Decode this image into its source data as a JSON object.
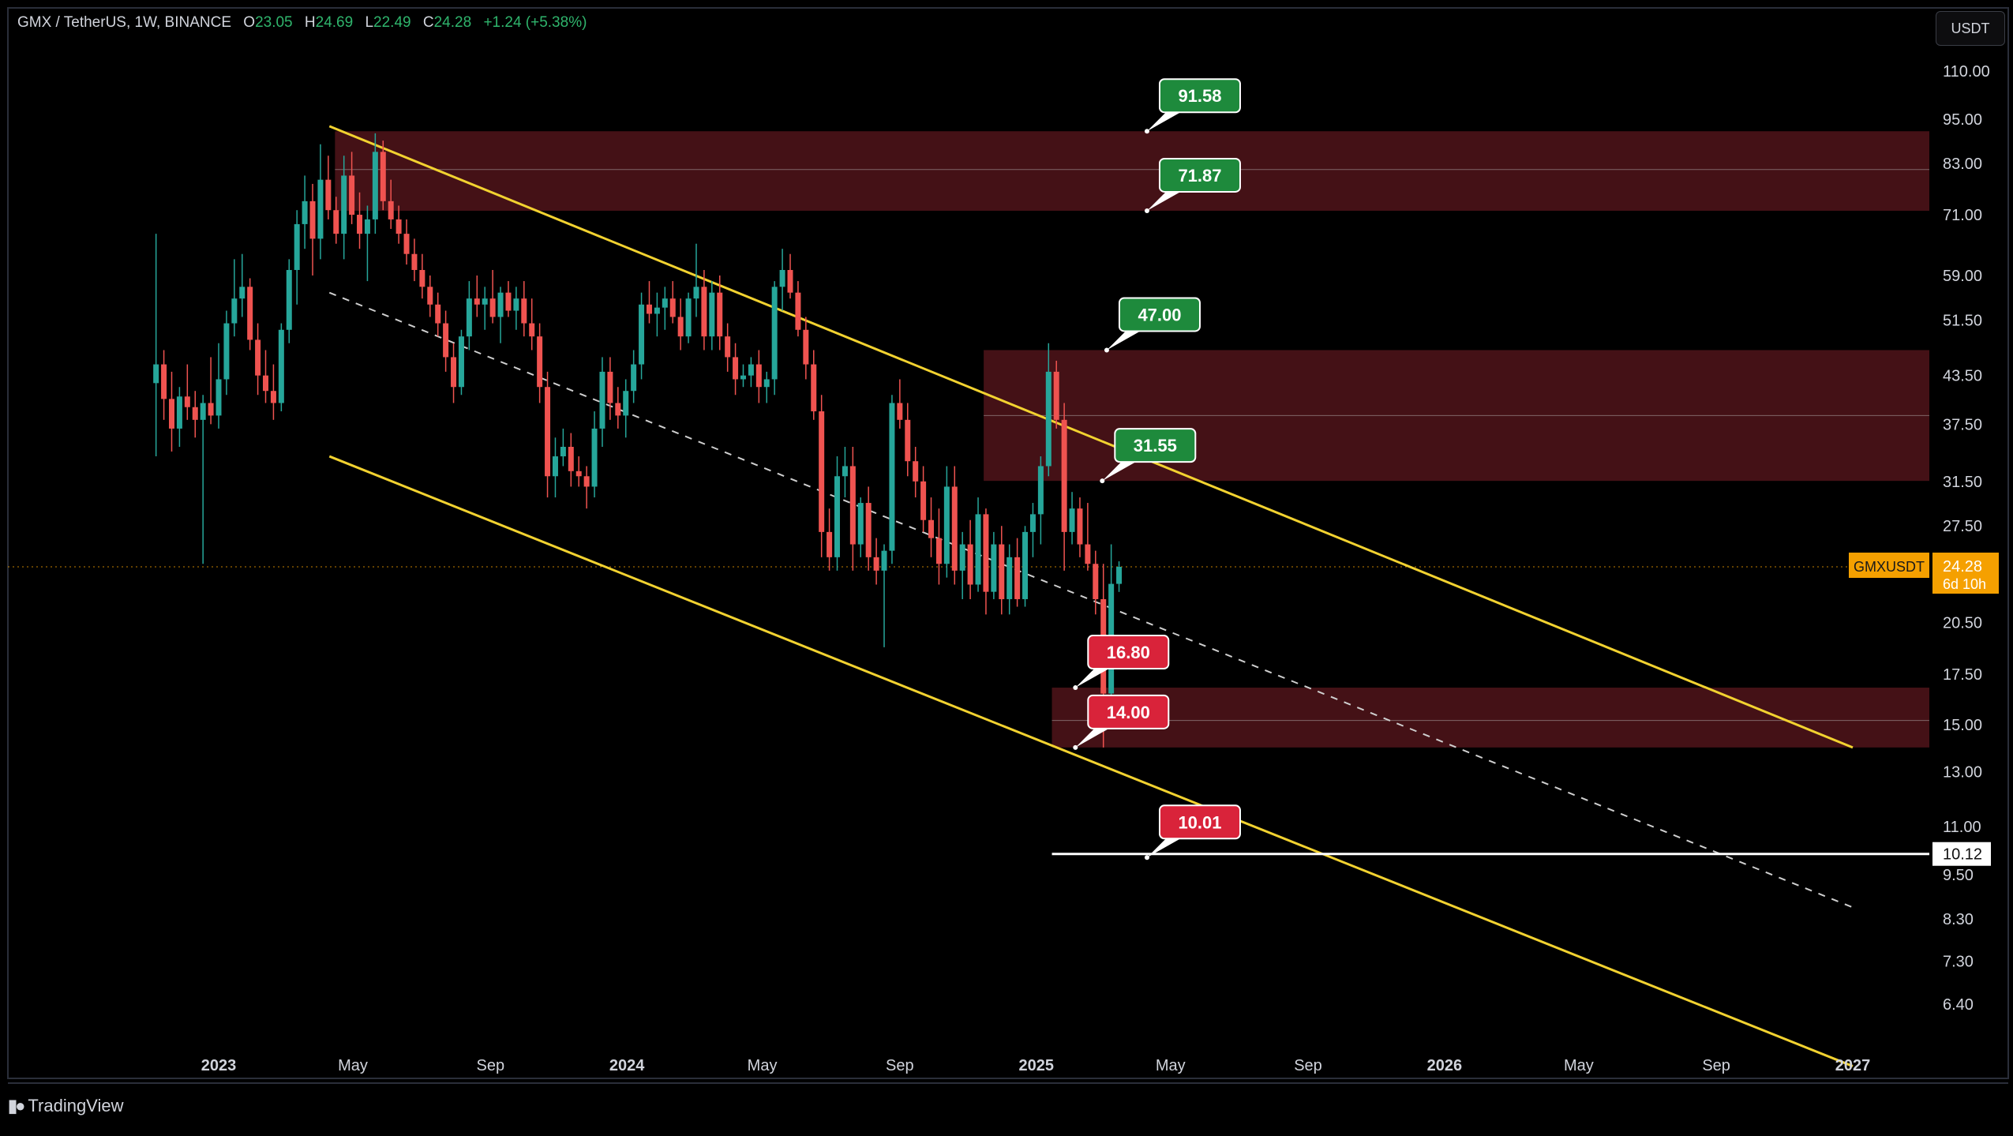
{
  "header": {
    "symbol": "GMX / TetherUS, 1W, BINANCE",
    "open_label": "O",
    "open": "23.05",
    "high_label": "H",
    "high": "24.69",
    "low_label": "L",
    "low": "22.49",
    "close_label": "C",
    "close": "24.28",
    "change": "+1.24 (+5.38%)"
  },
  "currency_button": "USDT",
  "brand": "TradingView",
  "colors": {
    "bull": "#26a69a",
    "bear": "#ef5350",
    "channel": "#f2d230",
    "zone": "#4a1218",
    "label_green": "#1e8a3c",
    "label_red": "#d9233a",
    "price_tag": "#f5a000"
  },
  "chart_data": {
    "type": "candlestick",
    "scale": "log",
    "symbol": "GMXUSDT",
    "interval": "1W",
    "y_ticks": [
      110.0,
      95.0,
      83.0,
      71.0,
      59.0,
      51.5,
      43.5,
      37.5,
      31.5,
      27.5,
      20.5,
      17.5,
      15.0,
      13.0,
      11.0,
      9.5,
      8.3,
      7.3,
      6.4
    ],
    "x_ticks": [
      {
        "date": "2023-01-01",
        "label": "2023"
      },
      {
        "date": "2023-05-01",
        "label": "May"
      },
      {
        "date": "2023-09-01",
        "label": "Sep"
      },
      {
        "date": "2024-01-01",
        "label": "2024"
      },
      {
        "date": "2024-05-01",
        "label": "May"
      },
      {
        "date": "2024-09-01",
        "label": "Sep"
      },
      {
        "date": "2025-01-01",
        "label": "2025"
      },
      {
        "date": "2025-05-01",
        "label": "May"
      },
      {
        "date": "2025-09-01",
        "label": "Sep"
      },
      {
        "date": "2026-01-01",
        "label": "2026"
      },
      {
        "date": "2026-05-01",
        "label": "May"
      },
      {
        "date": "2026-09-01",
        "label": "Sep"
      },
      {
        "date": "2027-01-01",
        "label": "2027"
      }
    ],
    "last_price": {
      "symbol": "GMXUSDT",
      "value": "24.28",
      "countdown": "6d 10h"
    },
    "horizontal_line": {
      "value": "10.12",
      "from": "2025-01-15"
    },
    "zones": [
      {
        "from": "2023-04-15",
        "top": 91.58,
        "mid": 81.5,
        "bottom": 71.87
      },
      {
        "from": "2024-11-15",
        "top": 47.0,
        "mid": 38.5,
        "bottom": 31.55
      },
      {
        "from": "2025-01-15",
        "top": 16.8,
        "mid": 15.2,
        "bottom": 14.0
      }
    ],
    "channel": {
      "upper": [
        {
          "date": "2023-04-10",
          "value": 93.0
        },
        {
          "date": "2027-01-01",
          "value": 14.0
        }
      ],
      "lower": [
        {
          "date": "2023-04-10",
          "value": 34.0
        },
        {
          "date": "2027-01-01",
          "value": 5.3
        }
      ],
      "mid": [
        {
          "date": "2023-04-10",
          "value": 56.0
        },
        {
          "date": "2027-01-01",
          "value": 8.6
        }
      ]
    },
    "labels": [
      {
        "text": "91.58",
        "color": "green",
        "date": "2025-04-10",
        "value": 91.58
      },
      {
        "text": "71.87",
        "color": "green",
        "date": "2025-04-10",
        "value": 71.87
      },
      {
        "text": "47.00",
        "color": "green",
        "date": "2025-03-05",
        "value": 47.0
      },
      {
        "text": "31.55",
        "color": "green",
        "date": "2025-03-01",
        "value": 31.55
      },
      {
        "text": "16.80",
        "color": "red",
        "date": "2025-02-05",
        "value": 16.8
      },
      {
        "text": "14.00",
        "color": "red",
        "date": "2025-02-05",
        "value": 14.0
      },
      {
        "text": "10.01",
        "color": "red",
        "date": "2025-04-10",
        "value": 10.01
      }
    ],
    "candles": [
      {
        "t": "2022-11-06",
        "o": 42.5,
        "h": 67.0,
        "l": 34.0,
        "c": 45.0
      },
      {
        "t": "2022-11-13",
        "o": 45.0,
        "h": 47.0,
        "l": 38.0,
        "c": 40.5
      },
      {
        "t": "2022-11-20",
        "o": 40.5,
        "h": 44.0,
        "l": 34.5,
        "c": 37.0
      },
      {
        "t": "2022-11-27",
        "o": 37.0,
        "h": 42.0,
        "l": 35.0,
        "c": 40.8
      },
      {
        "t": "2022-12-04",
        "o": 40.8,
        "h": 45.0,
        "l": 38.0,
        "c": 39.5
      },
      {
        "t": "2022-12-11",
        "o": 39.5,
        "h": 41.5,
        "l": 36.0,
        "c": 38.0
      },
      {
        "t": "2022-12-18",
        "o": 38.0,
        "h": 41.0,
        "l": 24.5,
        "c": 40.0
      },
      {
        "t": "2022-12-25",
        "o": 40.0,
        "h": 46.0,
        "l": 37.5,
        "c": 38.5
      },
      {
        "t": "2023-01-01",
        "o": 38.5,
        "h": 48.0,
        "l": 37.0,
        "c": 43.0
      },
      {
        "t": "2023-01-08",
        "o": 43.0,
        "h": 53.0,
        "l": 41.0,
        "c": 51.0
      },
      {
        "t": "2023-01-15",
        "o": 51.0,
        "h": 62.0,
        "l": 49.0,
        "c": 55.0
      },
      {
        "t": "2023-01-22",
        "o": 55.0,
        "h": 63.0,
        "l": 52.0,
        "c": 57.0
      },
      {
        "t": "2023-01-29",
        "o": 57.0,
        "h": 58.5,
        "l": 47.0,
        "c": 48.5
      },
      {
        "t": "2023-02-05",
        "o": 48.5,
        "h": 51.0,
        "l": 41.0,
        "c": 43.5
      },
      {
        "t": "2023-02-12",
        "o": 43.5,
        "h": 47.0,
        "l": 40.0,
        "c": 41.5
      },
      {
        "t": "2023-02-19",
        "o": 41.5,
        "h": 45.0,
        "l": 38.0,
        "c": 40.0
      },
      {
        "t": "2023-02-26",
        "o": 40.0,
        "h": 51.0,
        "l": 39.0,
        "c": 50.0
      },
      {
        "t": "2023-03-05",
        "o": 50.0,
        "h": 62.0,
        "l": 48.0,
        "c": 60.0
      },
      {
        "t": "2023-03-12",
        "o": 60.0,
        "h": 72.0,
        "l": 54.0,
        "c": 69.0
      },
      {
        "t": "2023-03-19",
        "o": 69.0,
        "h": 80.0,
        "l": 64.0,
        "c": 74.0
      },
      {
        "t": "2023-03-26",
        "o": 74.0,
        "h": 78.0,
        "l": 59.0,
        "c": 66.0
      },
      {
        "t": "2023-04-02",
        "o": 66.0,
        "h": 88.0,
        "l": 62.0,
        "c": 79.0
      },
      {
        "t": "2023-04-09",
        "o": 79.0,
        "h": 85.0,
        "l": 70.0,
        "c": 72.0
      },
      {
        "t": "2023-04-16",
        "o": 72.0,
        "h": 75.0,
        "l": 65.0,
        "c": 67.0
      },
      {
        "t": "2023-04-23",
        "o": 67.0,
        "h": 85.0,
        "l": 62.0,
        "c": 80.0
      },
      {
        "t": "2023-04-30",
        "o": 80.0,
        "h": 86.0,
        "l": 69.0,
        "c": 71.0
      },
      {
        "t": "2023-05-07",
        "o": 71.0,
        "h": 76.0,
        "l": 64.0,
        "c": 67.0
      },
      {
        "t": "2023-05-14",
        "o": 67.0,
        "h": 73.0,
        "l": 58.0,
        "c": 70.0
      },
      {
        "t": "2023-05-21",
        "o": 70.0,
        "h": 91.0,
        "l": 67.0,
        "c": 86.0
      },
      {
        "t": "2023-05-28",
        "o": 86.0,
        "h": 89.0,
        "l": 72.0,
        "c": 74.0
      },
      {
        "t": "2023-06-04",
        "o": 74.0,
        "h": 79.0,
        "l": 68.0,
        "c": 70.0
      },
      {
        "t": "2023-06-11",
        "o": 70.0,
        "h": 73.0,
        "l": 65.0,
        "c": 67.0
      },
      {
        "t": "2023-06-18",
        "o": 67.0,
        "h": 70.0,
        "l": 61.0,
        "c": 63.0
      },
      {
        "t": "2023-06-25",
        "o": 63.0,
        "h": 66.0,
        "l": 58.0,
        "c": 60.0
      },
      {
        "t": "2023-07-02",
        "o": 60.0,
        "h": 63.0,
        "l": 55.0,
        "c": 57.0
      },
      {
        "t": "2023-07-09",
        "o": 57.0,
        "h": 59.0,
        "l": 52.0,
        "c": 54.0
      },
      {
        "t": "2023-07-16",
        "o": 54.0,
        "h": 56.0,
        "l": 49.0,
        "c": 51.0
      },
      {
        "t": "2023-07-23",
        "o": 51.0,
        "h": 53.0,
        "l": 44.0,
        "c": 46.0
      },
      {
        "t": "2023-07-30",
        "o": 46.0,
        "h": 48.0,
        "l": 40.0,
        "c": 42.0
      },
      {
        "t": "2023-08-06",
        "o": 42.0,
        "h": 50.0,
        "l": 41.0,
        "c": 49.0
      },
      {
        "t": "2023-08-13",
        "o": 49.0,
        "h": 58.0,
        "l": 47.0,
        "c": 55.0
      },
      {
        "t": "2023-08-20",
        "o": 55.0,
        "h": 59.0,
        "l": 52.0,
        "c": 54.0
      },
      {
        "t": "2023-08-27",
        "o": 54.0,
        "h": 57.0,
        "l": 50.0,
        "c": 55.0
      },
      {
        "t": "2023-09-03",
        "o": 55.0,
        "h": 60.0,
        "l": 51.0,
        "c": 52.0
      },
      {
        "t": "2023-09-10",
        "o": 52.0,
        "h": 57.0,
        "l": 48.0,
        "c": 56.0
      },
      {
        "t": "2023-09-17",
        "o": 56.0,
        "h": 58.0,
        "l": 52.0,
        "c": 53.0
      },
      {
        "t": "2023-09-24",
        "o": 53.0,
        "h": 57.0,
        "l": 50.0,
        "c": 55.0
      },
      {
        "t": "2023-10-01",
        "o": 55.0,
        "h": 58.0,
        "l": 49.0,
        "c": 51.0
      },
      {
        "t": "2023-10-08",
        "o": 51.0,
        "h": 55.0,
        "l": 47.0,
        "c": 49.0
      },
      {
        "t": "2023-10-15",
        "o": 49.0,
        "h": 51.0,
        "l": 40.0,
        "c": 42.0
      },
      {
        "t": "2023-10-22",
        "o": 42.0,
        "h": 44.0,
        "l": 30.0,
        "c": 32.0
      },
      {
        "t": "2023-10-29",
        "o": 32.0,
        "h": 36.0,
        "l": 30.0,
        "c": 34.0
      },
      {
        "t": "2023-11-05",
        "o": 34.0,
        "h": 37.0,
        "l": 33.0,
        "c": 35.0
      },
      {
        "t": "2023-11-12",
        "o": 35.0,
        "h": 36.5,
        "l": 31.0,
        "c": 32.5
      },
      {
        "t": "2023-11-19",
        "o": 32.5,
        "h": 34.0,
        "l": 31.0,
        "c": 32.0
      },
      {
        "t": "2023-11-26",
        "o": 32.0,
        "h": 33.0,
        "l": 29.0,
        "c": 31.0
      },
      {
        "t": "2023-12-03",
        "o": 31.0,
        "h": 39.0,
        "l": 30.0,
        "c": 37.0
      },
      {
        "t": "2023-12-10",
        "o": 37.0,
        "h": 46.0,
        "l": 35.0,
        "c": 44.0
      },
      {
        "t": "2023-12-17",
        "o": 44.0,
        "h": 46.0,
        "l": 38.0,
        "c": 40.0
      },
      {
        "t": "2023-12-24",
        "o": 40.0,
        "h": 42.0,
        "l": 37.0,
        "c": 38.5
      },
      {
        "t": "2023-12-31",
        "o": 38.5,
        "h": 43.0,
        "l": 36.0,
        "c": 41.5
      },
      {
        "t": "2024-01-07",
        "o": 41.5,
        "h": 47.0,
        "l": 40.0,
        "c": 45.0
      },
      {
        "t": "2024-01-14",
        "o": 45.0,
        "h": 56.0,
        "l": 43.0,
        "c": 54.0
      },
      {
        "t": "2024-01-21",
        "o": 54.0,
        "h": 58.0,
        "l": 51.0,
        "c": 52.5
      },
      {
        "t": "2024-01-28",
        "o": 52.5,
        "h": 56.0,
        "l": 49.0,
        "c": 53.5
      },
      {
        "t": "2024-02-04",
        "o": 53.5,
        "h": 57.0,
        "l": 50.0,
        "c": 55.0
      },
      {
        "t": "2024-02-11",
        "o": 55.0,
        "h": 58.0,
        "l": 51.0,
        "c": 52.0
      },
      {
        "t": "2024-02-18",
        "o": 52.0,
        "h": 55.0,
        "l": 47.0,
        "c": 49.0
      },
      {
        "t": "2024-02-25",
        "o": 49.0,
        "h": 56.0,
        "l": 48.0,
        "c": 55.0
      },
      {
        "t": "2024-03-03",
        "o": 55.0,
        "h": 65.0,
        "l": 52.0,
        "c": 57.0
      },
      {
        "t": "2024-03-10",
        "o": 57.0,
        "h": 60.0,
        "l": 47.0,
        "c": 49.0
      },
      {
        "t": "2024-03-17",
        "o": 49.0,
        "h": 58.0,
        "l": 47.0,
        "c": 56.0
      },
      {
        "t": "2024-03-24",
        "o": 56.0,
        "h": 59.0,
        "l": 47.0,
        "c": 49.0
      },
      {
        "t": "2024-03-31",
        "o": 49.0,
        "h": 51.0,
        "l": 44.0,
        "c": 46.0
      },
      {
        "t": "2024-04-07",
        "o": 46.0,
        "h": 48.0,
        "l": 41.0,
        "c": 43.0
      },
      {
        "t": "2024-04-14",
        "o": 43.0,
        "h": 45.0,
        "l": 42.0,
        "c": 43.5
      },
      {
        "t": "2024-04-21",
        "o": 43.5,
        "h": 46.0,
        "l": 42.0,
        "c": 45.0
      },
      {
        "t": "2024-04-28",
        "o": 45.0,
        "h": 47.0,
        "l": 40.0,
        "c": 42.0
      },
      {
        "t": "2024-05-05",
        "o": 42.0,
        "h": 44.0,
        "l": 40.0,
        "c": 43.0
      },
      {
        "t": "2024-05-12",
        "o": 43.0,
        "h": 58.0,
        "l": 41.0,
        "c": 57.0
      },
      {
        "t": "2024-05-19",
        "o": 57.0,
        "h": 64.0,
        "l": 53.0,
        "c": 60.0
      },
      {
        "t": "2024-05-26",
        "o": 60.0,
        "h": 63.0,
        "l": 55.0,
        "c": 56.0
      },
      {
        "t": "2024-06-02",
        "o": 56.0,
        "h": 58.0,
        "l": 49.0,
        "c": 50.0
      },
      {
        "t": "2024-06-09",
        "o": 50.0,
        "h": 52.0,
        "l": 43.0,
        "c": 45.0
      },
      {
        "t": "2024-06-16",
        "o": 45.0,
        "h": 47.0,
        "l": 38.0,
        "c": 39.0
      },
      {
        "t": "2024-06-23",
        "o": 39.0,
        "h": 41.0,
        "l": 25.0,
        "c": 27.0
      },
      {
        "t": "2024-06-30",
        "o": 27.0,
        "h": 29.0,
        "l": 24.0,
        "c": 25.0
      },
      {
        "t": "2024-07-07",
        "o": 25.0,
        "h": 34.0,
        "l": 24.0,
        "c": 32.0
      },
      {
        "t": "2024-07-14",
        "o": 32.0,
        "h": 35.0,
        "l": 30.0,
        "c": 33.0
      },
      {
        "t": "2024-07-21",
        "o": 33.0,
        "h": 35.0,
        "l": 24.0,
        "c": 26.0
      },
      {
        "t": "2024-07-28",
        "o": 26.0,
        "h": 30.0,
        "l": 25.0,
        "c": 29.5
      },
      {
        "t": "2024-08-04",
        "o": 29.5,
        "h": 31.0,
        "l": 24.0,
        "c": 25.0
      },
      {
        "t": "2024-08-11",
        "o": 25.0,
        "h": 26.5,
        "l": 23.0,
        "c": 24.0
      },
      {
        "t": "2024-08-18",
        "o": 24.0,
        "h": 26.0,
        "l": 19.0,
        "c": 25.5
      },
      {
        "t": "2024-08-25",
        "o": 25.5,
        "h": 41.0,
        "l": 24.5,
        "c": 40.0
      },
      {
        "t": "2024-09-01",
        "o": 40.0,
        "h": 43.0,
        "l": 37.0,
        "c": 38.0
      },
      {
        "t": "2024-09-08",
        "o": 38.0,
        "h": 40.0,
        "l": 32.0,
        "c": 33.5
      },
      {
        "t": "2024-09-15",
        "o": 33.5,
        "h": 35.0,
        "l": 30.0,
        "c": 31.5
      },
      {
        "t": "2024-09-22",
        "o": 31.5,
        "h": 33.0,
        "l": 27.0,
        "c": 28.0
      },
      {
        "t": "2024-09-29",
        "o": 28.0,
        "h": 30.0,
        "l": 25.0,
        "c": 26.5
      },
      {
        "t": "2024-10-06",
        "o": 26.5,
        "h": 29.0,
        "l": 23.0,
        "c": 24.5
      },
      {
        "t": "2024-10-13",
        "o": 24.5,
        "h": 33.0,
        "l": 23.5,
        "c": 31.0
      },
      {
        "t": "2024-10-20",
        "o": 31.0,
        "h": 33.0,
        "l": 23.0,
        "c": 24.0
      },
      {
        "t": "2024-10-27",
        "o": 24.0,
        "h": 27.0,
        "l": 22.0,
        "c": 26.0
      },
      {
        "t": "2024-11-03",
        "o": 26.0,
        "h": 28.0,
        "l": 22.0,
        "c": 23.0
      },
      {
        "t": "2024-11-10",
        "o": 23.0,
        "h": 30.0,
        "l": 22.5,
        "c": 28.5
      },
      {
        "t": "2024-11-17",
        "o": 28.5,
        "h": 29.0,
        "l": 21.0,
        "c": 22.5
      },
      {
        "t": "2024-11-24",
        "o": 22.5,
        "h": 27.0,
        "l": 22.0,
        "c": 26.0
      },
      {
        "t": "2024-12-01",
        "o": 26.0,
        "h": 27.5,
        "l": 21.0,
        "c": 22.0
      },
      {
        "t": "2024-12-08",
        "o": 22.0,
        "h": 26.0,
        "l": 21.0,
        "c": 25.0
      },
      {
        "t": "2024-12-15",
        "o": 25.0,
        "h": 26.5,
        "l": 21.5,
        "c": 22.0
      },
      {
        "t": "2024-12-22",
        "o": 22.0,
        "h": 27.5,
        "l": 21.5,
        "c": 27.0
      },
      {
        "t": "2024-12-29",
        "o": 27.0,
        "h": 29.5,
        "l": 25.0,
        "c": 28.5
      },
      {
        "t": "2025-01-05",
        "o": 28.5,
        "h": 34.0,
        "l": 26.0,
        "c": 33.0
      },
      {
        "t": "2025-01-12",
        "o": 33.0,
        "h": 48.0,
        "l": 32.0,
        "c": 44.0
      },
      {
        "t": "2025-01-19",
        "o": 44.0,
        "h": 45.5,
        "l": 37.0,
        "c": 38.0
      },
      {
        "t": "2025-01-26",
        "o": 38.0,
        "h": 40.0,
        "l": 24.0,
        "c": 27.0
      },
      {
        "t": "2025-02-02",
        "o": 27.0,
        "h": 30.5,
        "l": 26.0,
        "c": 29.0
      },
      {
        "t": "2025-02-09",
        "o": 29.0,
        "h": 30.0,
        "l": 25.0,
        "c": 26.0
      },
      {
        "t": "2025-02-16",
        "o": 26.0,
        "h": 29.5,
        "l": 24.0,
        "c": 24.5
      },
      {
        "t": "2025-02-23",
        "o": 24.5,
        "h": 25.5,
        "l": 21.0,
        "c": 22.0
      },
      {
        "t": "2025-03-02",
        "o": 22.0,
        "h": 24.5,
        "l": 14.0,
        "c": 16.5
      },
      {
        "t": "2025-03-09",
        "o": 16.5,
        "h": 26.0,
        "l": 16.0,
        "c": 23.05
      },
      {
        "t": "2025-03-16",
        "o": 23.05,
        "h": 24.69,
        "l": 22.49,
        "c": 24.28
      }
    ]
  }
}
